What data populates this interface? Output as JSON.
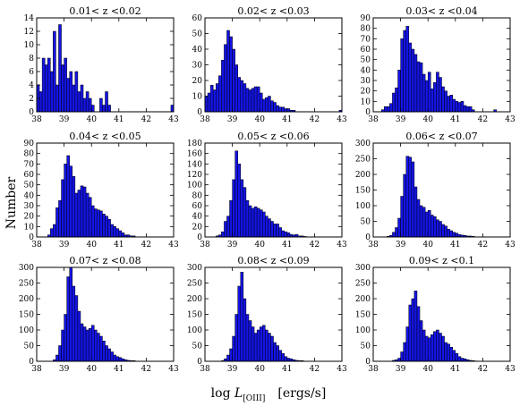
{
  "figure": {
    "ylabel": "Number",
    "xlabel_prefix": "log ",
    "xlabel_var": "L",
    "xlabel_sub": "[OIII]",
    "xlabel_units": "[ergs/s]"
  },
  "chart_data": [
    {
      "type": "bar",
      "title": "0.01< z <0.02",
      "xlim": [
        38,
        43
      ],
      "ylim": [
        0,
        14
      ],
      "xticks": [
        "38",
        "39",
        "40",
        "41",
        "42",
        "43"
      ],
      "yticks": [
        "0",
        "2",
        "4",
        "6",
        "8",
        "10",
        "12",
        "14"
      ],
      "bin_start": 38.0,
      "bin_width": 0.1,
      "values": [
        4,
        3,
        8,
        7,
        8,
        6,
        12,
        4,
        13,
        7,
        8,
        5,
        6,
        4,
        6,
        3,
        4,
        2,
        3,
        2,
        1,
        0,
        0,
        2,
        1,
        3,
        1,
        0,
        0,
        0,
        0,
        0,
        0,
        0,
        0,
        0,
        0,
        0,
        0,
        0,
        0,
        0,
        0,
        0,
        0,
        0,
        0,
        0,
        0,
        1
      ]
    },
    {
      "type": "bar",
      "title": "0.02< z <0.03",
      "xlim": [
        38,
        43
      ],
      "ylim": [
        0,
        60
      ],
      "xticks": [
        "38",
        "39",
        "40",
        "41",
        "42",
        "43"
      ],
      "yticks": [
        "0",
        "10",
        "20",
        "30",
        "40",
        "50",
        "60"
      ],
      "bin_start": 38.0,
      "bin_width": 0.1,
      "values": [
        10,
        12,
        17,
        14,
        18,
        23,
        33,
        43,
        52,
        48,
        40,
        30,
        22,
        20,
        18,
        15,
        14,
        15,
        16,
        16,
        12,
        8,
        9,
        10,
        7,
        6,
        4,
        3,
        3,
        2,
        2,
        1,
        1,
        0,
        0,
        0,
        0,
        0,
        0,
        0,
        0,
        0,
        0,
        0,
        0,
        0,
        0,
        0,
        0,
        1
      ]
    },
    {
      "type": "bar",
      "title": "0.03< z <0.04",
      "xlim": [
        38,
        43
      ],
      "ylim": [
        0,
        90
      ],
      "xticks": [
        "38",
        "39",
        "40",
        "41",
        "42",
        "43"
      ],
      "yticks": [
        "0",
        "10",
        "20",
        "30",
        "40",
        "50",
        "60",
        "70",
        "80",
        "90"
      ],
      "bin_start": 38.0,
      "bin_width": 0.1,
      "values": [
        0,
        0,
        0,
        2,
        5,
        5,
        8,
        18,
        23,
        40,
        70,
        78,
        82,
        66,
        60,
        55,
        48,
        47,
        36,
        30,
        38,
        22,
        28,
        38,
        33,
        24,
        20,
        15,
        16,
        12,
        10,
        9,
        10,
        6,
        5,
        5,
        2,
        0,
        0,
        0,
        0,
        0,
        0,
        0,
        2,
        0,
        0,
        0,
        0,
        0
      ]
    },
    {
      "type": "bar",
      "title": "0.04< z <0.05",
      "xlim": [
        38,
        43
      ],
      "ylim": [
        0,
        90
      ],
      "xticks": [
        "38",
        "39",
        "40",
        "41",
        "42",
        "43"
      ],
      "yticks": [
        "0",
        "10",
        "20",
        "30",
        "40",
        "50",
        "60",
        "70",
        "80",
        "90"
      ],
      "bin_start": 38.0,
      "bin_width": 0.1,
      "values": [
        0,
        0,
        0,
        0,
        2,
        8,
        12,
        28,
        35,
        55,
        70,
        78,
        68,
        58,
        42,
        45,
        49,
        48,
        42,
        38,
        30,
        27,
        26,
        25,
        22,
        20,
        17,
        12,
        10,
        8,
        6,
        4,
        2,
        2,
        1,
        1,
        0,
        0,
        0,
        0,
        0,
        0,
        0,
        0,
        0,
        0,
        0,
        0,
        0,
        0
      ]
    },
    {
      "type": "bar",
      "title": "0.05< z <0.06",
      "xlim": [
        38,
        43
      ],
      "ylim": [
        0,
        180
      ],
      "xticks": [
        "38",
        "39",
        "40",
        "41",
        "42",
        "43"
      ],
      "yticks": [
        "0",
        "20",
        "40",
        "60",
        "80",
        "100",
        "120",
        "140",
        "160",
        "180"
      ],
      "bin_start": 38.0,
      "bin_width": 0.1,
      "values": [
        0,
        0,
        0,
        0,
        2,
        4,
        10,
        30,
        40,
        70,
        110,
        165,
        140,
        110,
        95,
        70,
        60,
        55,
        58,
        55,
        52,
        48,
        40,
        35,
        30,
        25,
        25,
        18,
        12,
        10,
        8,
        5,
        4,
        5,
        2,
        2,
        1,
        0,
        0,
        0,
        0,
        0,
        0,
        0,
        0,
        0,
        0,
        0,
        0,
        0
      ]
    },
    {
      "type": "bar",
      "title": "0.06< z <0.07",
      "xlim": [
        38,
        43
      ],
      "ylim": [
        0,
        300
      ],
      "xticks": [
        "38",
        "39",
        "40",
        "41",
        "42",
        "43"
      ],
      "yticks": [
        "0",
        "50",
        "100",
        "150",
        "200",
        "250",
        "300"
      ],
      "bin_start": 38.0,
      "bin_width": 0.1,
      "values": [
        0,
        0,
        0,
        0,
        0,
        2,
        5,
        15,
        30,
        60,
        130,
        200,
        258,
        255,
        240,
        160,
        120,
        100,
        95,
        80,
        85,
        70,
        65,
        55,
        50,
        40,
        35,
        25,
        20,
        15,
        12,
        8,
        6,
        5,
        3,
        3,
        2,
        0,
        0,
        0,
        0,
        0,
        0,
        0,
        0,
        0,
        0,
        0,
        0,
        0
      ]
    },
    {
      "type": "bar",
      "title": "0.07< z <0.08",
      "xlim": [
        38,
        43
      ],
      "ylim": [
        0,
        300
      ],
      "xticks": [
        "38",
        "39",
        "40",
        "41",
        "42",
        "43"
      ],
      "yticks": [
        "0",
        "50",
        "100",
        "150",
        "200",
        "250",
        "300"
      ],
      "bin_start": 38.0,
      "bin_width": 0.1,
      "values": [
        0,
        0,
        0,
        0,
        0,
        0,
        5,
        20,
        50,
        100,
        150,
        270,
        300,
        240,
        210,
        160,
        120,
        110,
        100,
        105,
        115,
        100,
        90,
        80,
        65,
        50,
        40,
        30,
        20,
        15,
        12,
        8,
        5,
        3,
        2,
        2,
        0,
        0,
        0,
        0,
        0,
        0,
        0,
        0,
        0,
        0,
        0,
        0,
        0,
        0
      ]
    },
    {
      "type": "bar",
      "title": "0.08< z <0.09",
      "xlim": [
        38,
        43
      ],
      "ylim": [
        0,
        300
      ],
      "xticks": [
        "38",
        "39",
        "40",
        "41",
        "42",
        "43"
      ],
      "yticks": [
        "0",
        "50",
        "100",
        "150",
        "200",
        "250",
        "300"
      ],
      "bin_start": 38.0,
      "bin_width": 0.1,
      "values": [
        0,
        0,
        0,
        0,
        0,
        0,
        2,
        8,
        20,
        40,
        80,
        150,
        240,
        285,
        200,
        150,
        130,
        110,
        90,
        100,
        110,
        115,
        100,
        90,
        80,
        60,
        50,
        35,
        25,
        15,
        10,
        8,
        5,
        3,
        2,
        2,
        0,
        0,
        0,
        0,
        0,
        0,
        0,
        0,
        0,
        0,
        0,
        0,
        0,
        0
      ]
    },
    {
      "type": "bar",
      "title": "0.09< z <0.1",
      "xlim": [
        38,
        43
      ],
      "ylim": [
        0,
        300
      ],
      "xticks": [
        "38",
        "39",
        "40",
        "41",
        "42",
        "43"
      ],
      "yticks": [
        "0",
        "50",
        "100",
        "150",
        "200",
        "250",
        "300"
      ],
      "bin_start": 38.0,
      "bin_width": 0.1,
      "values": [
        0,
        0,
        0,
        0,
        0,
        0,
        0,
        3,
        5,
        10,
        30,
        60,
        110,
        180,
        200,
        225,
        175,
        130,
        100,
        80,
        75,
        85,
        95,
        100,
        90,
        80,
        60,
        55,
        45,
        35,
        25,
        15,
        10,
        8,
        5,
        3,
        2,
        1,
        0,
        0,
        0,
        0,
        0,
        0,
        0,
        0,
        0,
        0,
        0,
        0
      ]
    }
  ],
  "colors": {
    "bar_fill": "#1414e6",
    "bar_edge": "#000000",
    "axis": "#000000"
  }
}
